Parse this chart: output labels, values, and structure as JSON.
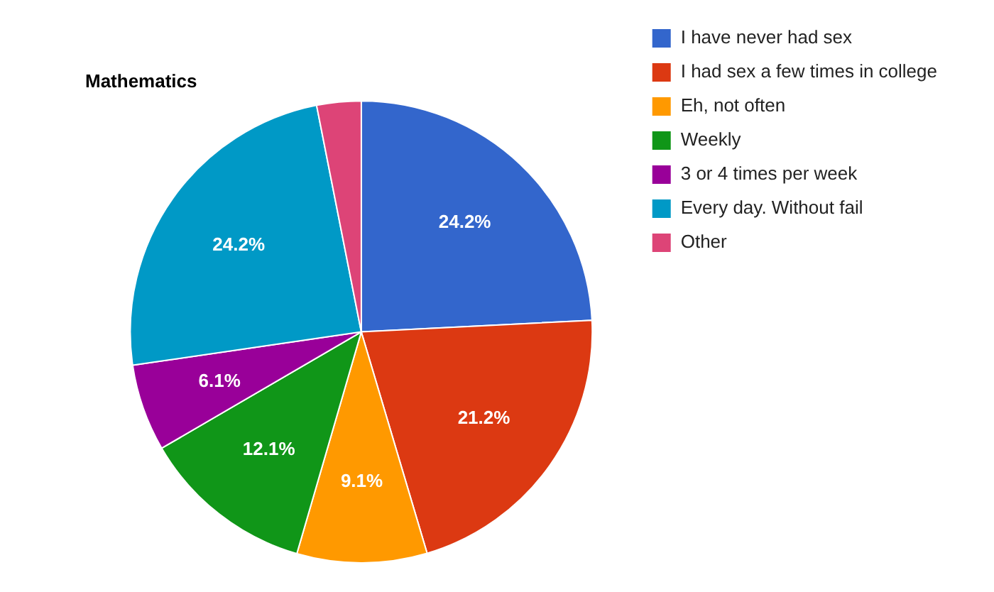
{
  "chart_data": {
    "type": "pie",
    "title": "Mathematics",
    "categories": [
      "I have never had sex",
      "I had sex a few times in college",
      "Eh, not often",
      "Weekly",
      "3 or 4 times per week",
      "Every day. Without fail",
      "Other"
    ],
    "values": [
      24.2,
      21.2,
      9.1,
      12.1,
      6.1,
      24.2,
      3.1
    ],
    "value_labels": [
      "24.2%",
      "21.2%",
      "9.1%",
      "12.1%",
      "6.1%",
      "24.2%",
      null
    ],
    "colors": [
      "#3366cc",
      "#dc3912",
      "#ff9900",
      "#109618",
      "#990099",
      "#0099c6",
      "#dd4477"
    ],
    "legend": "right"
  }
}
